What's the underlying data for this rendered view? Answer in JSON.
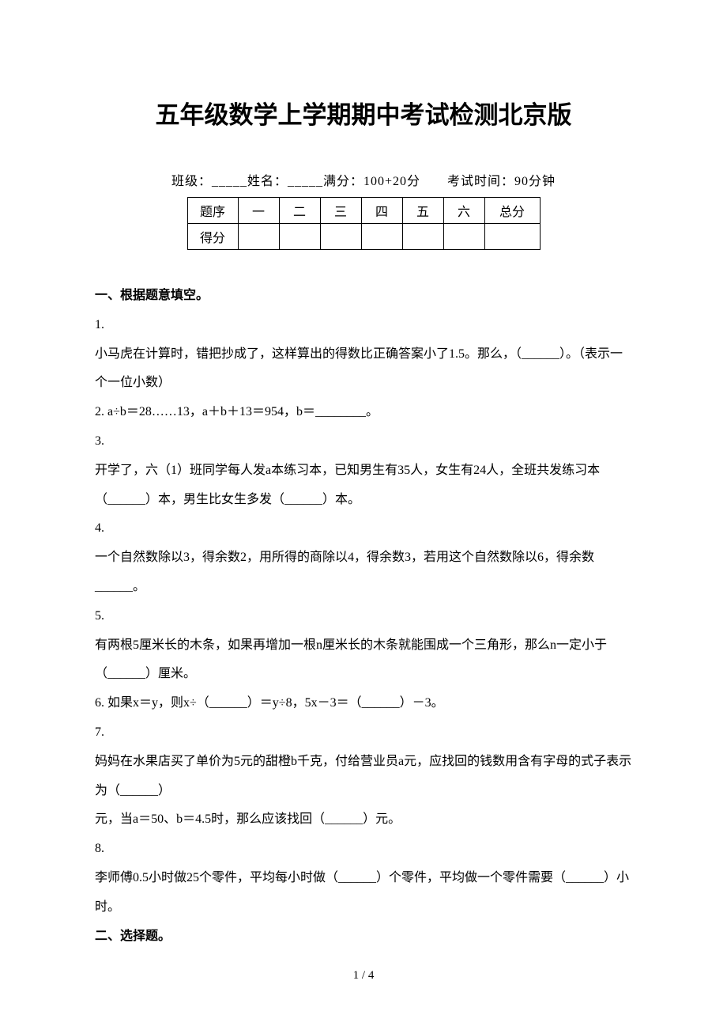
{
  "title": "五年级数学上学期期中考试检测北京版",
  "info_line": "班级：_____姓名：_____满分：100+20分　　考试时间：90分钟",
  "score_table": {
    "row_labels": [
      "题序",
      "得分"
    ],
    "columns": [
      "一",
      "二",
      "三",
      "四",
      "五",
      "六",
      "总分"
    ]
  },
  "section1": {
    "heading": "一、根据题意填空。",
    "q1_num": "1.",
    "q1_text": "小马虎在计算时，错把抄成了，这样算出的得数比正确答案小了1.5。那么，（______）。（表示一个一位小数）",
    "q2_num": "2.",
    "q2_text": "a÷b＝28……13，a＋b＋13＝954，b＝________。",
    "q3_num": "3.",
    "q3_text_a": "开学了，六（1）班同学每人发a本练习本，已知男生有35人，女生有24人，全班共发练习本（______）本，男生比女生多发（______）本。",
    "q4_num": "4.",
    "q4_text": "一个自然数除以3，得余数2，用所得的商除以4，得余数3，若用这个自然数除以6，得余数______。",
    "q5_num": "5.",
    "q5_text": "有两根5厘米长的木条，如果再增加一根n厘米长的木条就能围成一个三角形，那么n一定小于（______）厘米。",
    "q6_num": "6.",
    "q6_text": "如果x＝y，则x÷（______）＝y÷8，5x－3＝（______）－3。",
    "q7_num": "7.",
    "q7_text_a": "妈妈在水果店买了单价为5元的甜橙b千克，付给营业员a元，应找回的钱数用含有字母的式子表示为（______）",
    "q7_text_b": "元，当a＝50、b＝4.5时，那么应该找回（______）元。",
    "q8_num": "8.",
    "q8_text": "李师傅0.5小时做25个零件，平均每小时做（______）个零件，平均做一个零件需要（______）小时。"
  },
  "section2": {
    "heading": "二、选择题。"
  },
  "footer": "1 / 4",
  "style": {
    "background_color": "#ffffff",
    "text_color": "#000000",
    "title_fontsize": 31,
    "body_fontsize": 16,
    "line_height": 2.3,
    "table_border_color": "#000000"
  }
}
